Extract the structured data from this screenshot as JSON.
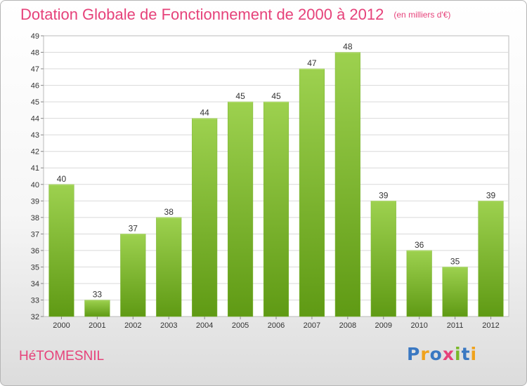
{
  "header": {
    "title": "Dotation Globale de Fonctionnement de 2000 à 2012",
    "subtitle": "(en milliers d'€)"
  },
  "footer": {
    "commune": "HéTOMESNIL",
    "brand": "Proxiti",
    "brand_letters": [
      {
        "ch": "P",
        "color": "#3a78c2"
      },
      {
        "ch": "r",
        "color": "#f0a21c"
      },
      {
        "ch": "o",
        "color": "#3a78c2"
      },
      {
        "ch": "x",
        "color": "#e6427a"
      },
      {
        "ch": "i",
        "color": "#7ab829"
      },
      {
        "ch": "t",
        "color": "#3a78c2"
      },
      {
        "ch": "i",
        "color": "#f0a21c"
      }
    ]
  },
  "colors": {
    "accent": "#e6427a",
    "bar_top": "#9dd14f",
    "bar_bottom": "#5f9a14",
    "grid": "#d9d9d9",
    "axis": "#888888"
  },
  "chart_data": {
    "type": "bar",
    "title": "Dotation Globale de Fonctionnement de 2000 à 2012",
    "subtitle": "(en milliers d'€)",
    "categories": [
      "2000",
      "2001",
      "2002",
      "2003",
      "2004",
      "2005",
      "2006",
      "2007",
      "2008",
      "2009",
      "2010",
      "2011",
      "2012"
    ],
    "values": [
      40,
      33,
      37,
      38,
      44,
      45,
      45,
      47,
      48,
      39,
      36,
      35,
      39
    ],
    "ylim": [
      32,
      49
    ],
    "yticks": [
      32,
      33,
      34,
      35,
      36,
      37,
      38,
      39,
      40,
      41,
      42,
      43,
      44,
      45,
      46,
      47,
      48,
      49
    ],
    "grid": true,
    "legend": "none",
    "xlabel": "",
    "ylabel": ""
  }
}
